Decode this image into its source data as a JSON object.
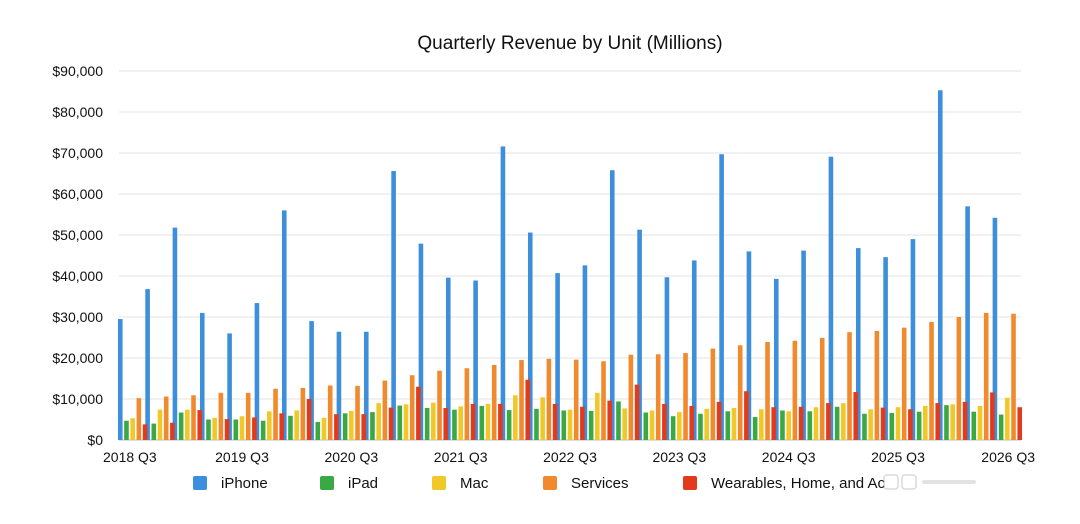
{
  "chart_data": {
    "type": "bar",
    "title": "Quarterly Revenue by Unit (Millions)",
    "xlabel": "",
    "ylabel": "",
    "ylim": [
      0,
      90000
    ],
    "yticks": [
      "$0",
      "$10,000",
      "$20,000",
      "$30,000",
      "$40,000",
      "$50,000",
      "$60,000",
      "$70,000",
      "$80,000",
      "$90,000"
    ],
    "x_tick_labels": [
      {
        "index": 0,
        "label": "2018 Q3"
      },
      {
        "index": 4,
        "label": "2019 Q3"
      },
      {
        "index": 8,
        "label": "2020 Q3"
      },
      {
        "index": 12,
        "label": "2021 Q3"
      },
      {
        "index": 16,
        "label": "2022 Q3"
      },
      {
        "index": 20,
        "label": "2023 Q3"
      },
      {
        "index": 24,
        "label": "2024 Q3"
      },
      {
        "index": 28,
        "label": "2025 Q3"
      },
      {
        "index": 32,
        "label": "2026 Q3"
      }
    ],
    "categories": [
      "2018 Q3",
      "2018 Q4",
      "2019 Q1",
      "2019 Q2",
      "2019 Q3",
      "2019 Q4",
      "2020 Q1",
      "2020 Q2",
      "2020 Q3",
      "2020 Q4",
      "2021 Q1",
      "2021 Q2",
      "2021 Q3",
      "2021 Q4",
      "2022 Q1",
      "2022 Q2",
      "2022 Q3",
      "2022 Q4",
      "2023 Q1",
      "2023 Q2",
      "2023 Q3",
      "2023 Q4",
      "2024 Q1",
      "2024 Q2",
      "2024 Q3",
      "2024 Q4",
      "2025 Q1",
      "2025 Q2",
      "2025 Q3",
      "2025 Q4",
      "2026 Q1",
      "2026 Q2",
      "2026 Q3"
    ],
    "series": [
      {
        "name": "iPhone",
        "color": "#3d8fdc",
        "values": [
          29500,
          36800,
          51800,
          31000,
          26000,
          33400,
          56000,
          29000,
          26400,
          26400,
          65600,
          47900,
          39600,
          38900,
          71600,
          50600,
          40700,
          42600,
          65800,
          51300,
          39700,
          43800,
          69700,
          46000,
          39300,
          46200,
          69100,
          46800,
          44600,
          49000,
          85300,
          57000,
          54200
        ]
      },
      {
        "name": "iPad",
        "color": "#3aa843",
        "values": [
          4700,
          4000,
          6700,
          5000,
          5000,
          4700,
          5900,
          4400,
          6500,
          6800,
          8400,
          7800,
          7400,
          8300,
          7300,
          7600,
          7200,
          7100,
          9400,
          6700,
          5800,
          6400,
          7000,
          5600,
          7200,
          7000,
          8100,
          6400,
          6600,
          6900,
          8500,
          6900,
          6200
        ]
      },
      {
        "name": "Mac",
        "color": "#f0c928",
        "values": [
          5300,
          7400,
          7400,
          5400,
          5800,
          7000,
          7200,
          5400,
          7100,
          9000,
          8700,
          9100,
          8200,
          8800,
          10900,
          10400,
          7400,
          11500,
          7700,
          7200,
          6800,
          7600,
          7800,
          7500,
          7000,
          8000,
          9000,
          7500,
          8000,
          8300,
          8700,
          8300,
          10300
        ]
      },
      {
        "name": "Services",
        "color": "#f08a2c",
        "values": [
          10200,
          10600,
          10900,
          11500,
          11500,
          12500,
          12700,
          13300,
          13200,
          14500,
          15800,
          16900,
          17500,
          18300,
          19500,
          19800,
          19600,
          19200,
          20800,
          20900,
          21200,
          22300,
          23100,
          23900,
          24200,
          24900,
          26300,
          26600,
          27400,
          28800,
          30000,
          31000,
          30800
        ]
      },
      {
        "name": "Wearables, Home, and Ac",
        "color": "#e23a1c",
        "values": [
          3800,
          4200,
          7300,
          5100,
          5500,
          6500,
          10000,
          6300,
          6300,
          7900,
          13000,
          7800,
          8800,
          8800,
          14700,
          8800,
          8100,
          9600,
          13500,
          8800,
          8300,
          9300,
          11900,
          8000,
          8100,
          9000,
          11700,
          7900,
          7500,
          9000,
          9300,
          11600,
          8000
        ]
      }
    ],
    "legend_position": "bottom",
    "grid": true
  }
}
